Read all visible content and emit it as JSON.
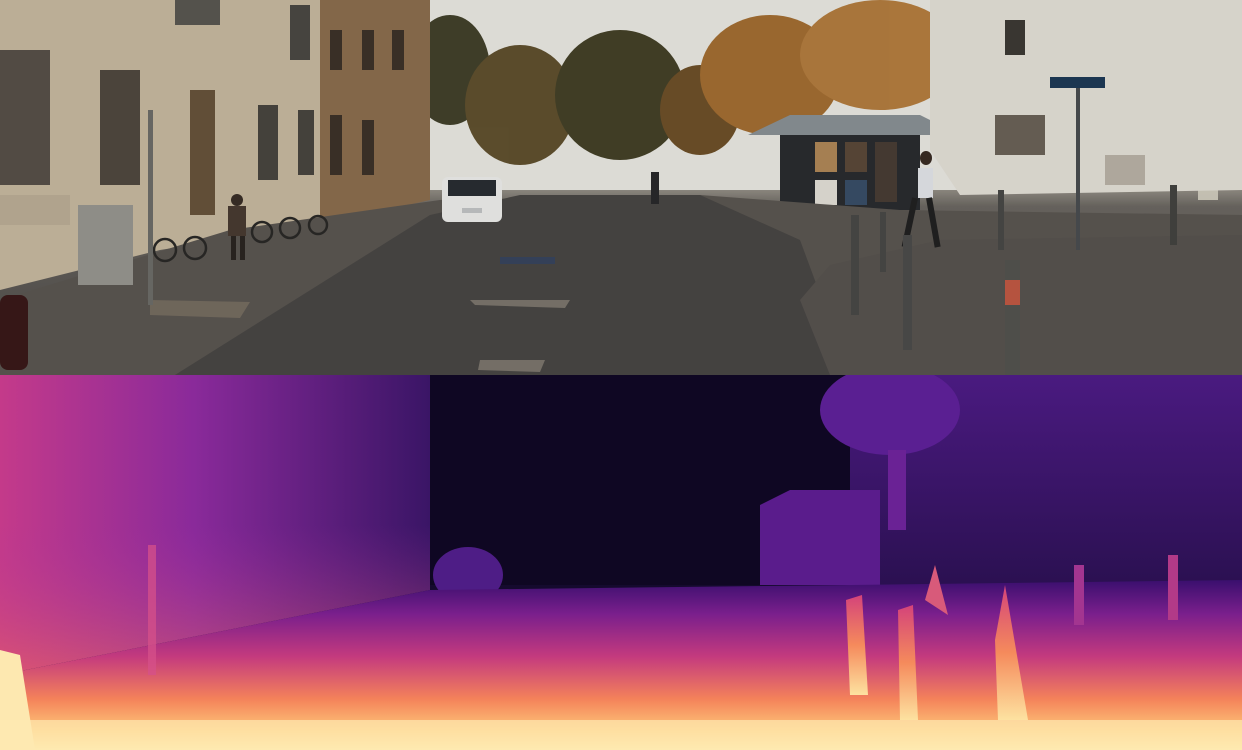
{
  "scene": {
    "panels": [
      "photo",
      "depth"
    ],
    "colors": {
      "sky": "#efeee8",
      "road": "#4a4846",
      "sidewalk": "#5d5853",
      "building_left": "#cdbfa6",
      "building_mid": "#8f7050",
      "foliage": "#a36a2a",
      "depth_far": "#120626",
      "depth_mid": "#7a1f8c",
      "depth_near": "#fde6a6"
    }
  }
}
